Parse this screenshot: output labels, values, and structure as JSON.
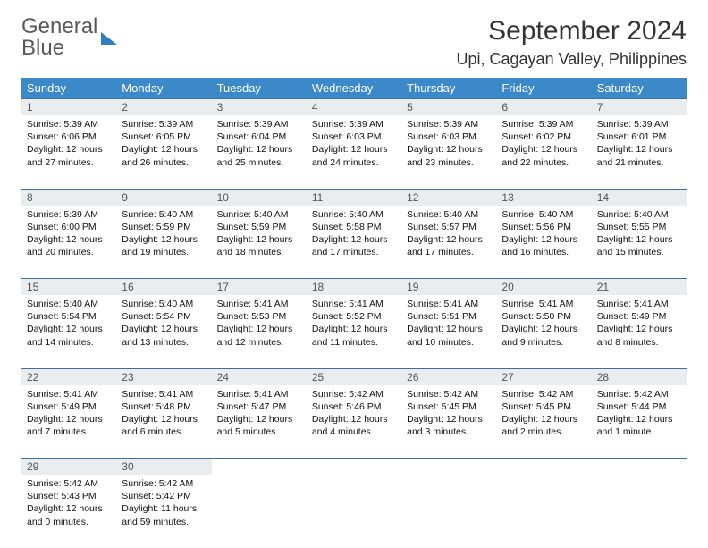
{
  "brand": {
    "name_a": "General",
    "name_b": "Blue"
  },
  "title": "September 2024",
  "location": "Upi, Cagayan Valley, Philippines",
  "colors": {
    "header_bg": "#3b89c9",
    "daynum_bg": "#e9edf0",
    "row_border": "#3b6f9e",
    "brand_gray": "#5a5a5a",
    "brand_blue": "#2e7cc2"
  },
  "weekdays": [
    "Sunday",
    "Monday",
    "Tuesday",
    "Wednesday",
    "Thursday",
    "Friday",
    "Saturday"
  ],
  "weeks": [
    {
      "nums": [
        "1",
        "2",
        "3",
        "4",
        "5",
        "6",
        "7"
      ],
      "cells": [
        {
          "sunrise": "5:39 AM",
          "sunset": "6:06 PM",
          "daylight": "12 hours and 27 minutes."
        },
        {
          "sunrise": "5:39 AM",
          "sunset": "6:05 PM",
          "daylight": "12 hours and 26 minutes."
        },
        {
          "sunrise": "5:39 AM",
          "sunset": "6:04 PM",
          "daylight": "12 hours and 25 minutes."
        },
        {
          "sunrise": "5:39 AM",
          "sunset": "6:03 PM",
          "daylight": "12 hours and 24 minutes."
        },
        {
          "sunrise": "5:39 AM",
          "sunset": "6:03 PM",
          "daylight": "12 hours and 23 minutes."
        },
        {
          "sunrise": "5:39 AM",
          "sunset": "6:02 PM",
          "daylight": "12 hours and 22 minutes."
        },
        {
          "sunrise": "5:39 AM",
          "sunset": "6:01 PM",
          "daylight": "12 hours and 21 minutes."
        }
      ]
    },
    {
      "nums": [
        "8",
        "9",
        "10",
        "11",
        "12",
        "13",
        "14"
      ],
      "cells": [
        {
          "sunrise": "5:39 AM",
          "sunset": "6:00 PM",
          "daylight": "12 hours and 20 minutes."
        },
        {
          "sunrise": "5:40 AM",
          "sunset": "5:59 PM",
          "daylight": "12 hours and 19 minutes."
        },
        {
          "sunrise": "5:40 AM",
          "sunset": "5:59 PM",
          "daylight": "12 hours and 18 minutes."
        },
        {
          "sunrise": "5:40 AM",
          "sunset": "5:58 PM",
          "daylight": "12 hours and 17 minutes."
        },
        {
          "sunrise": "5:40 AM",
          "sunset": "5:57 PM",
          "daylight": "12 hours and 17 minutes."
        },
        {
          "sunrise": "5:40 AM",
          "sunset": "5:56 PM",
          "daylight": "12 hours and 16 minutes."
        },
        {
          "sunrise": "5:40 AM",
          "sunset": "5:55 PM",
          "daylight": "12 hours and 15 minutes."
        }
      ]
    },
    {
      "nums": [
        "15",
        "16",
        "17",
        "18",
        "19",
        "20",
        "21"
      ],
      "cells": [
        {
          "sunrise": "5:40 AM",
          "sunset": "5:54 PM",
          "daylight": "12 hours and 14 minutes."
        },
        {
          "sunrise": "5:40 AM",
          "sunset": "5:54 PM",
          "daylight": "12 hours and 13 minutes."
        },
        {
          "sunrise": "5:41 AM",
          "sunset": "5:53 PM",
          "daylight": "12 hours and 12 minutes."
        },
        {
          "sunrise": "5:41 AM",
          "sunset": "5:52 PM",
          "daylight": "12 hours and 11 minutes."
        },
        {
          "sunrise": "5:41 AM",
          "sunset": "5:51 PM",
          "daylight": "12 hours and 10 minutes."
        },
        {
          "sunrise": "5:41 AM",
          "sunset": "5:50 PM",
          "daylight": "12 hours and 9 minutes."
        },
        {
          "sunrise": "5:41 AM",
          "sunset": "5:49 PM",
          "daylight": "12 hours and 8 minutes."
        }
      ]
    },
    {
      "nums": [
        "22",
        "23",
        "24",
        "25",
        "26",
        "27",
        "28"
      ],
      "cells": [
        {
          "sunrise": "5:41 AM",
          "sunset": "5:49 PM",
          "daylight": "12 hours and 7 minutes."
        },
        {
          "sunrise": "5:41 AM",
          "sunset": "5:48 PM",
          "daylight": "12 hours and 6 minutes."
        },
        {
          "sunrise": "5:41 AM",
          "sunset": "5:47 PM",
          "daylight": "12 hours and 5 minutes."
        },
        {
          "sunrise": "5:42 AM",
          "sunset": "5:46 PM",
          "daylight": "12 hours and 4 minutes."
        },
        {
          "sunrise": "5:42 AM",
          "sunset": "5:45 PM",
          "daylight": "12 hours and 3 minutes."
        },
        {
          "sunrise": "5:42 AM",
          "sunset": "5:45 PM",
          "daylight": "12 hours and 2 minutes."
        },
        {
          "sunrise": "5:42 AM",
          "sunset": "5:44 PM",
          "daylight": "12 hours and 1 minute."
        }
      ]
    },
    {
      "nums": [
        "29",
        "30",
        "",
        "",
        "",
        "",
        ""
      ],
      "cells": [
        {
          "sunrise": "5:42 AM",
          "sunset": "5:43 PM",
          "daylight": "12 hours and 0 minutes."
        },
        {
          "sunrise": "5:42 AM",
          "sunset": "5:42 PM",
          "daylight": "11 hours and 59 minutes."
        },
        null,
        null,
        null,
        null,
        null
      ]
    }
  ],
  "labels": {
    "sunrise": "Sunrise: ",
    "sunset": "Sunset: ",
    "daylight": "Daylight: "
  }
}
